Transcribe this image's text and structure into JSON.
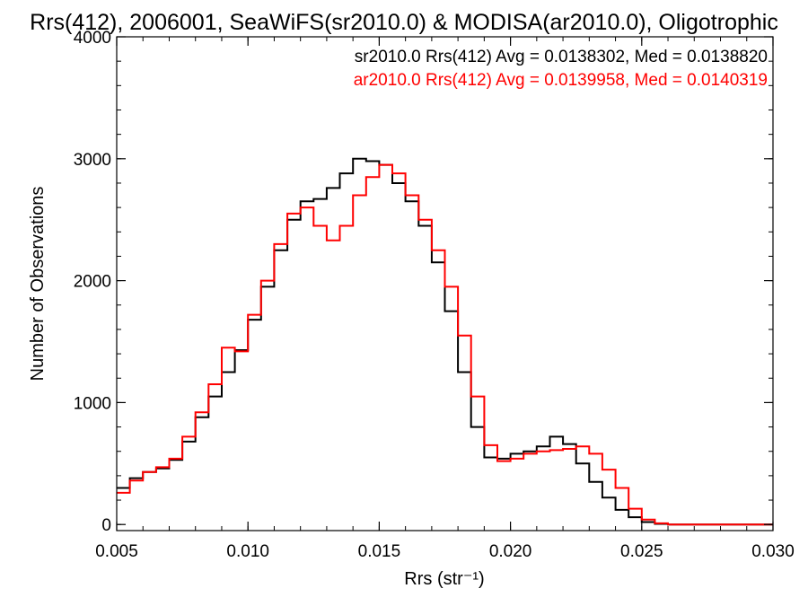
{
  "chart_data": {
    "type": "line",
    "title": "Rrs(412), 2006001, SeaWiFS(sr2010.0) & MODISA(ar2010.0), Oligotrophic",
    "xlabel": "Rrs (str⁻¹)",
    "ylabel": "Number of Observations",
    "xlim": [
      0.005,
      0.03
    ],
    "ylim": [
      -50,
      4000
    ],
    "xticks": [
      0.005,
      0.01,
      0.015,
      0.02,
      0.025,
      0.03
    ],
    "xtick_labels": [
      "0.005",
      "0.010",
      "0.015",
      "0.020",
      "0.025",
      "0.030"
    ],
    "yticks": [
      0,
      1000,
      2000,
      3000,
      4000
    ],
    "ytick_labels": [
      "0",
      "1000",
      "2000",
      "3000",
      "4000"
    ],
    "grid": false,
    "legend_position": "top-right",
    "legend": [
      {
        "text": "sr2010.0 Rrs(412) Avg = 0.0138302, Med = 0.0138820",
        "color": "#000000"
      },
      {
        "text": "ar2010.0 Rrs(412) Avg = 0.0139958, Med = 0.0140319",
        "color": "#ff0000"
      }
    ],
    "series": [
      {
        "color": "#000000",
        "x": [
          0.005,
          0.0055,
          0.006,
          0.0065,
          0.007,
          0.0075,
          0.008,
          0.0085,
          0.009,
          0.0095,
          0.01,
          0.0105,
          0.011,
          0.0115,
          0.012,
          0.0125,
          0.013,
          0.0135,
          0.014,
          0.0145,
          0.015,
          0.0155,
          0.016,
          0.0165,
          0.017,
          0.0175,
          0.018,
          0.0185,
          0.019,
          0.0195,
          0.02,
          0.0205,
          0.021,
          0.0215,
          0.022,
          0.0225,
          0.023,
          0.0235,
          0.024,
          0.0245,
          0.025,
          0.0255,
          0.026,
          0.027,
          0.028,
          0.029,
          0.03
        ],
        "y": [
          300,
          380,
          430,
          460,
          530,
          680,
          880,
          1050,
          1250,
          1430,
          1680,
          1950,
          2250,
          2500,
          2650,
          2670,
          2760,
          2880,
          3000,
          2980,
          2950,
          2800,
          2650,
          2450,
          2150,
          1750,
          1250,
          800,
          550,
          540,
          580,
          600,
          640,
          720,
          660,
          500,
          350,
          220,
          120,
          60,
          20,
          5,
          0,
          0,
          0,
          0,
          0
        ]
      },
      {
        "color": "#ff0000",
        "x": [
          0.005,
          0.0055,
          0.006,
          0.0065,
          0.007,
          0.0075,
          0.008,
          0.0085,
          0.009,
          0.0095,
          0.01,
          0.0105,
          0.011,
          0.0115,
          0.012,
          0.0125,
          0.013,
          0.0135,
          0.014,
          0.0145,
          0.015,
          0.0155,
          0.016,
          0.0165,
          0.017,
          0.0175,
          0.018,
          0.0185,
          0.019,
          0.0195,
          0.02,
          0.0205,
          0.021,
          0.0215,
          0.022,
          0.0225,
          0.023,
          0.0235,
          0.024,
          0.0245,
          0.025,
          0.0255,
          0.026,
          0.027,
          0.028,
          0.029,
          0.03
        ],
        "y": [
          260,
          360,
          430,
          470,
          540,
          720,
          920,
          1150,
          1450,
          1420,
          1720,
          2000,
          2300,
          2550,
          2600,
          2450,
          2330,
          2450,
          2700,
          2850,
          2950,
          2880,
          2700,
          2500,
          2250,
          1950,
          1550,
          1050,
          650,
          520,
          540,
          580,
          600,
          610,
          620,
          640,
          580,
          450,
          300,
          130,
          40,
          10,
          0,
          0,
          0,
          0,
          0
        ]
      }
    ]
  }
}
